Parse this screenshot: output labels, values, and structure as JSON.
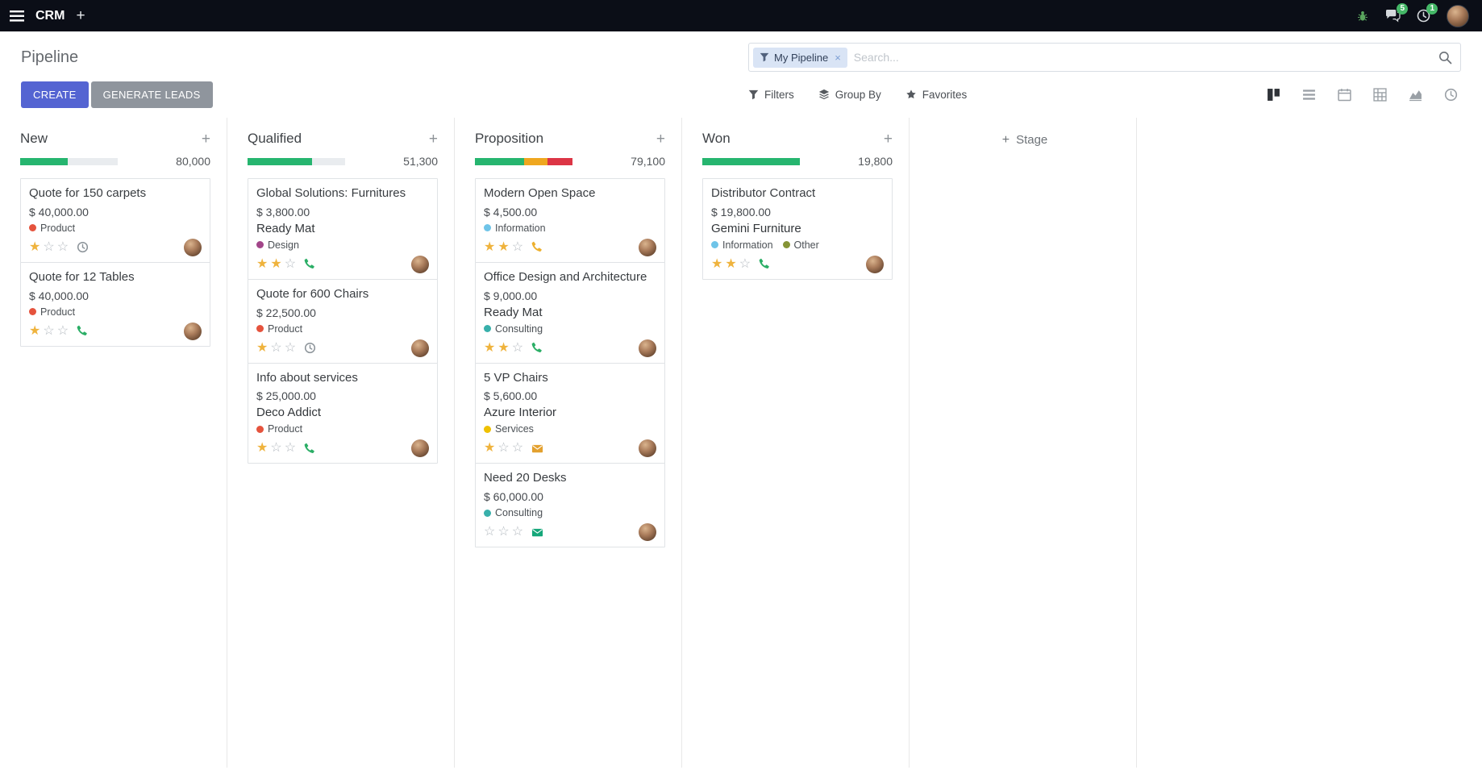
{
  "colors": {
    "navbar": "#0b0e17",
    "accent": "#5464d2",
    "secondary": "#8f959d",
    "badge": "#44b767",
    "star": "#efb33d"
  },
  "navbar": {
    "app_name": "CRM",
    "message_badge": "5",
    "activity_badge": "1"
  },
  "control_panel": {
    "title": "Pipeline",
    "search": {
      "facet_label": "My Pipeline",
      "placeholder": "Search...",
      "remove_symbol": "×"
    },
    "buttons": {
      "create": "CREATE",
      "generate_leads": "GENERATE LEADS"
    },
    "filter_menu": {
      "filters": "Filters",
      "group_by": "Group By",
      "favorites": "Favorites"
    },
    "view_switcher": {
      "views": [
        "kanban",
        "list",
        "calendar",
        "pivot",
        "graph",
        "activity"
      ],
      "active": "kanban"
    }
  },
  "kanban": {
    "add_stage_label": "Stage",
    "columns": [
      {
        "name": "New",
        "total": "80,000",
        "progress": [
          {
            "color": "#26b56f",
            "pct": 49
          }
        ],
        "cards": [
          {
            "title": "Quote for 150 carpets",
            "amount": "$ 40,000.00",
            "tags": [
              {
                "label": "Product",
                "color": "#e5533d"
              }
            ],
            "stars": 1,
            "activity": {
              "icon": "clock-icon",
              "color": "#8a9298"
            }
          },
          {
            "title": "Quote for 12 Tables",
            "amount": "$ 40,000.00",
            "tags": [
              {
                "label": "Product",
                "color": "#e5533d"
              }
            ],
            "stars": 1,
            "activity": {
              "icon": "phone-icon",
              "color": "#2bae66"
            }
          }
        ]
      },
      {
        "name": "Qualified",
        "total": "51,300",
        "progress": [
          {
            "color": "#26b56f",
            "pct": 66
          }
        ],
        "cards": [
          {
            "title": "Global Solutions: Furnitures",
            "amount": "$ 3,800.00",
            "partner": "Ready Mat",
            "tags": [
              {
                "label": "Design",
                "color": "#a24689"
              }
            ],
            "stars": 2,
            "activity": {
              "icon": "phone-icon",
              "color": "#2bae66"
            }
          },
          {
            "title": "Quote for 600 Chairs",
            "amount": "$ 22,500.00",
            "tags": [
              {
                "label": "Product",
                "color": "#e5533d"
              }
            ],
            "stars": 1,
            "activity": {
              "icon": "clock-icon",
              "color": "#8a9298"
            }
          },
          {
            "title": "Info about services",
            "amount": "$ 25,000.00",
            "partner": "Deco Addict",
            "tags": [
              {
                "label": "Product",
                "color": "#e5533d"
              }
            ],
            "stars": 1,
            "activity": {
              "icon": "phone-icon",
              "color": "#2bae66"
            }
          }
        ]
      },
      {
        "name": "Proposition",
        "total": "79,100",
        "progress": [
          {
            "color": "#26b56f",
            "pct": 50
          },
          {
            "color": "#efa71f",
            "pct": 24
          },
          {
            "color": "#dc3545",
            "pct": 26
          }
        ],
        "cards": [
          {
            "title": "Modern Open Space",
            "amount": "$ 4,500.00",
            "tags": [
              {
                "label": "Information",
                "color": "#6fc4e8"
              }
            ],
            "stars": 2,
            "activity": {
              "icon": "phone-icon",
              "color": "#edb02e"
            }
          },
          {
            "title": "Office Design and Architecture",
            "amount": "$ 9,000.00",
            "partner": "Ready Mat",
            "tags": [
              {
                "label": "Consulting",
                "color": "#38b0ab"
              }
            ],
            "stars": 2,
            "activity": {
              "icon": "phone-icon",
              "color": "#2bae66"
            }
          },
          {
            "title": "5 VP Chairs",
            "amount": "$ 5,600.00",
            "partner": "Azure Interior",
            "tags": [
              {
                "label": "Services",
                "color": "#efc100"
              }
            ],
            "stars": 1,
            "activity": {
              "icon": "mail-icon",
              "color": "#e3a12f"
            }
          },
          {
            "title": "Need 20 Desks",
            "amount": "$ 60,000.00",
            "tags": [
              {
                "label": "Consulting",
                "color": "#38b0ab"
              }
            ],
            "stars": 0,
            "activity": {
              "icon": "mail-icon",
              "color": "#16a77a"
            }
          }
        ]
      },
      {
        "name": "Won",
        "total": "19,800",
        "progress": [
          {
            "color": "#26b56f",
            "pct": 100
          }
        ],
        "cards": [
          {
            "title": "Distributor Contract",
            "amount": "$ 19,800.00",
            "partner": "Gemini Furniture",
            "tags": [
              {
                "label": "Information",
                "color": "#6fc4e8"
              },
              {
                "label": "Other",
                "color": "#859436"
              }
            ],
            "stars": 2,
            "activity": {
              "icon": "phone-icon",
              "color": "#2bae66"
            }
          }
        ]
      }
    ]
  }
}
